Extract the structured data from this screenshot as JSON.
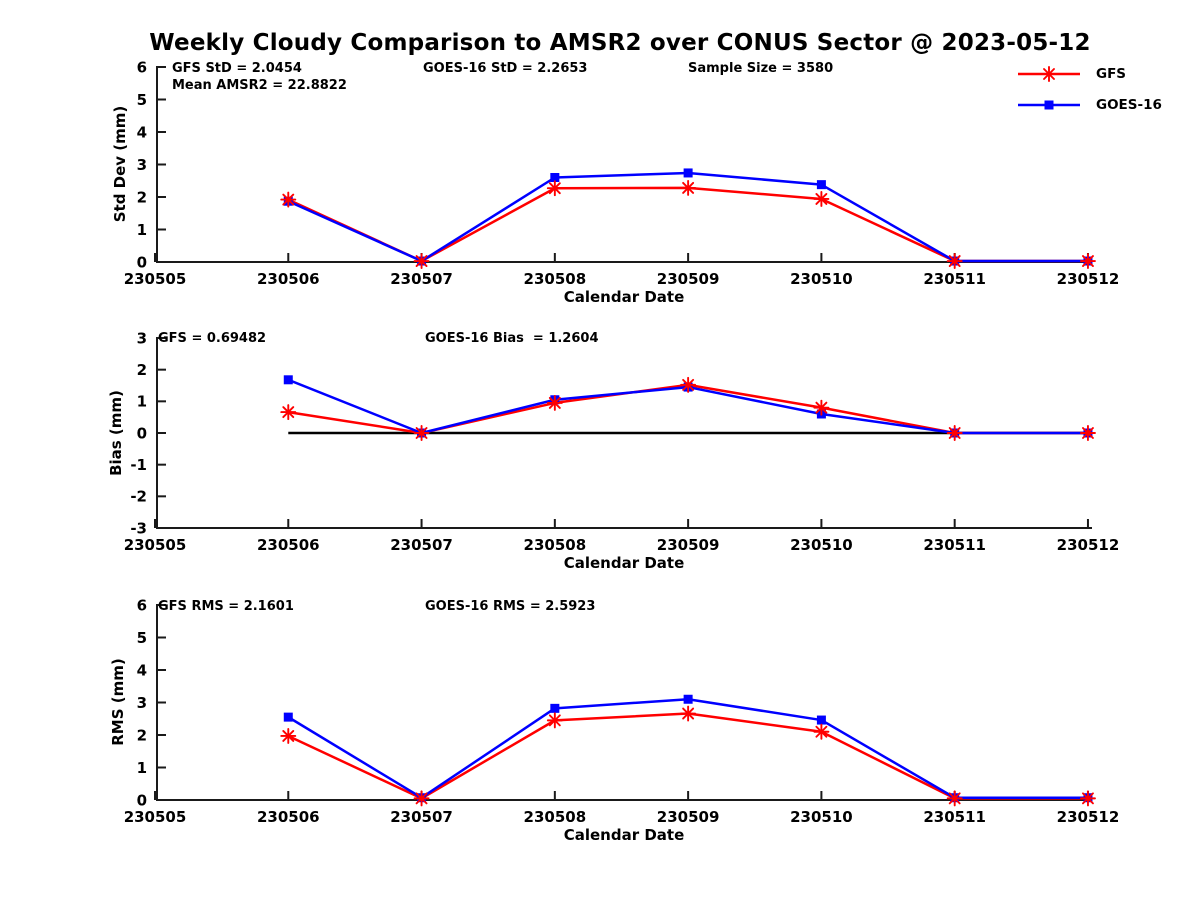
{
  "title": "Weekly Cloudy Comparison to AMSR2 over CONUS Sector @ 2023-05-12",
  "legend": {
    "items": [
      {
        "label": "GFS",
        "color": "#ff0000",
        "marker": "asterisk"
      },
      {
        "label": "GOES-16",
        "color": "#0000ff",
        "marker": "square"
      }
    ]
  },
  "x_axis": {
    "label": "Calendar Date",
    "categories": [
      "230505",
      "230506",
      "230507",
      "230508",
      "230509",
      "230510",
      "230511",
      "230512"
    ]
  },
  "colors": {
    "gfs": "#ff0000",
    "goes16": "#0000ff",
    "axis": "#1a1a1a",
    "zero_line": "#000000"
  },
  "chart_data": [
    {
      "type": "line",
      "name": "std-dev",
      "ylabel": "Std Dev (mm)",
      "ylim": [
        0,
        6
      ],
      "yticks": [
        0,
        1,
        2,
        3,
        4,
        5,
        6
      ],
      "x": [
        "230506",
        "230507",
        "230508",
        "230509",
        "230510",
        "230511",
        "230512"
      ],
      "series": [
        {
          "name": "GFS",
          "color": "#ff0000",
          "marker": "asterisk",
          "values": [
            1.92,
            0.03,
            2.27,
            2.28,
            1.94,
            0.03,
            0.03
          ]
        },
        {
          "name": "GOES-16",
          "color": "#0000ff",
          "marker": "square",
          "values": [
            1.87,
            0.03,
            2.6,
            2.74,
            2.38,
            0.03,
            0.03
          ]
        }
      ],
      "annotations": [
        "GFS StD = 2.0454",
        "Mean AMSR2 = 22.8822",
        "GOES-16 StD = 2.2653",
        "Sample Size = 3580"
      ]
    },
    {
      "type": "line",
      "name": "bias",
      "ylabel": "Bias (mm)",
      "ylim": [
        -3,
        3
      ],
      "yticks": [
        -3,
        -2,
        -1,
        0,
        1,
        2,
        3
      ],
      "zero_line": true,
      "x": [
        "230506",
        "230507",
        "230508",
        "230509",
        "230510",
        "230511",
        "230512"
      ],
      "series": [
        {
          "name": "GFS",
          "color": "#ff0000",
          "marker": "asterisk",
          "values": [
            0.66,
            0.0,
            0.95,
            1.52,
            0.8,
            0.0,
            0.0
          ]
        },
        {
          "name": "GOES-16",
          "color": "#0000ff",
          "marker": "square",
          "values": [
            1.68,
            0.0,
            1.05,
            1.45,
            0.6,
            0.0,
            0.0
          ]
        }
      ],
      "annotations": [
        "GFS = 0.69482",
        "GOES-16 Bias  = 1.2604"
      ]
    },
    {
      "type": "line",
      "name": "rms",
      "ylabel": "RMS (mm)",
      "ylim": [
        0,
        6
      ],
      "yticks": [
        0,
        1,
        2,
        3,
        4,
        5,
        6
      ],
      "x": [
        "230506",
        "230507",
        "230508",
        "230509",
        "230510",
        "230511",
        "230512"
      ],
      "series": [
        {
          "name": "GFS",
          "color": "#ff0000",
          "marker": "asterisk",
          "values": [
            1.97,
            0.05,
            2.45,
            2.66,
            2.1,
            0.05,
            0.05
          ]
        },
        {
          "name": "GOES-16",
          "color": "#0000ff",
          "marker": "square",
          "values": [
            2.55,
            0.07,
            2.82,
            3.1,
            2.46,
            0.07,
            0.07
          ]
        }
      ],
      "annotations": [
        "GFS RMS = 2.1601",
        "GOES-16 RMS = 2.5923"
      ]
    }
  ]
}
